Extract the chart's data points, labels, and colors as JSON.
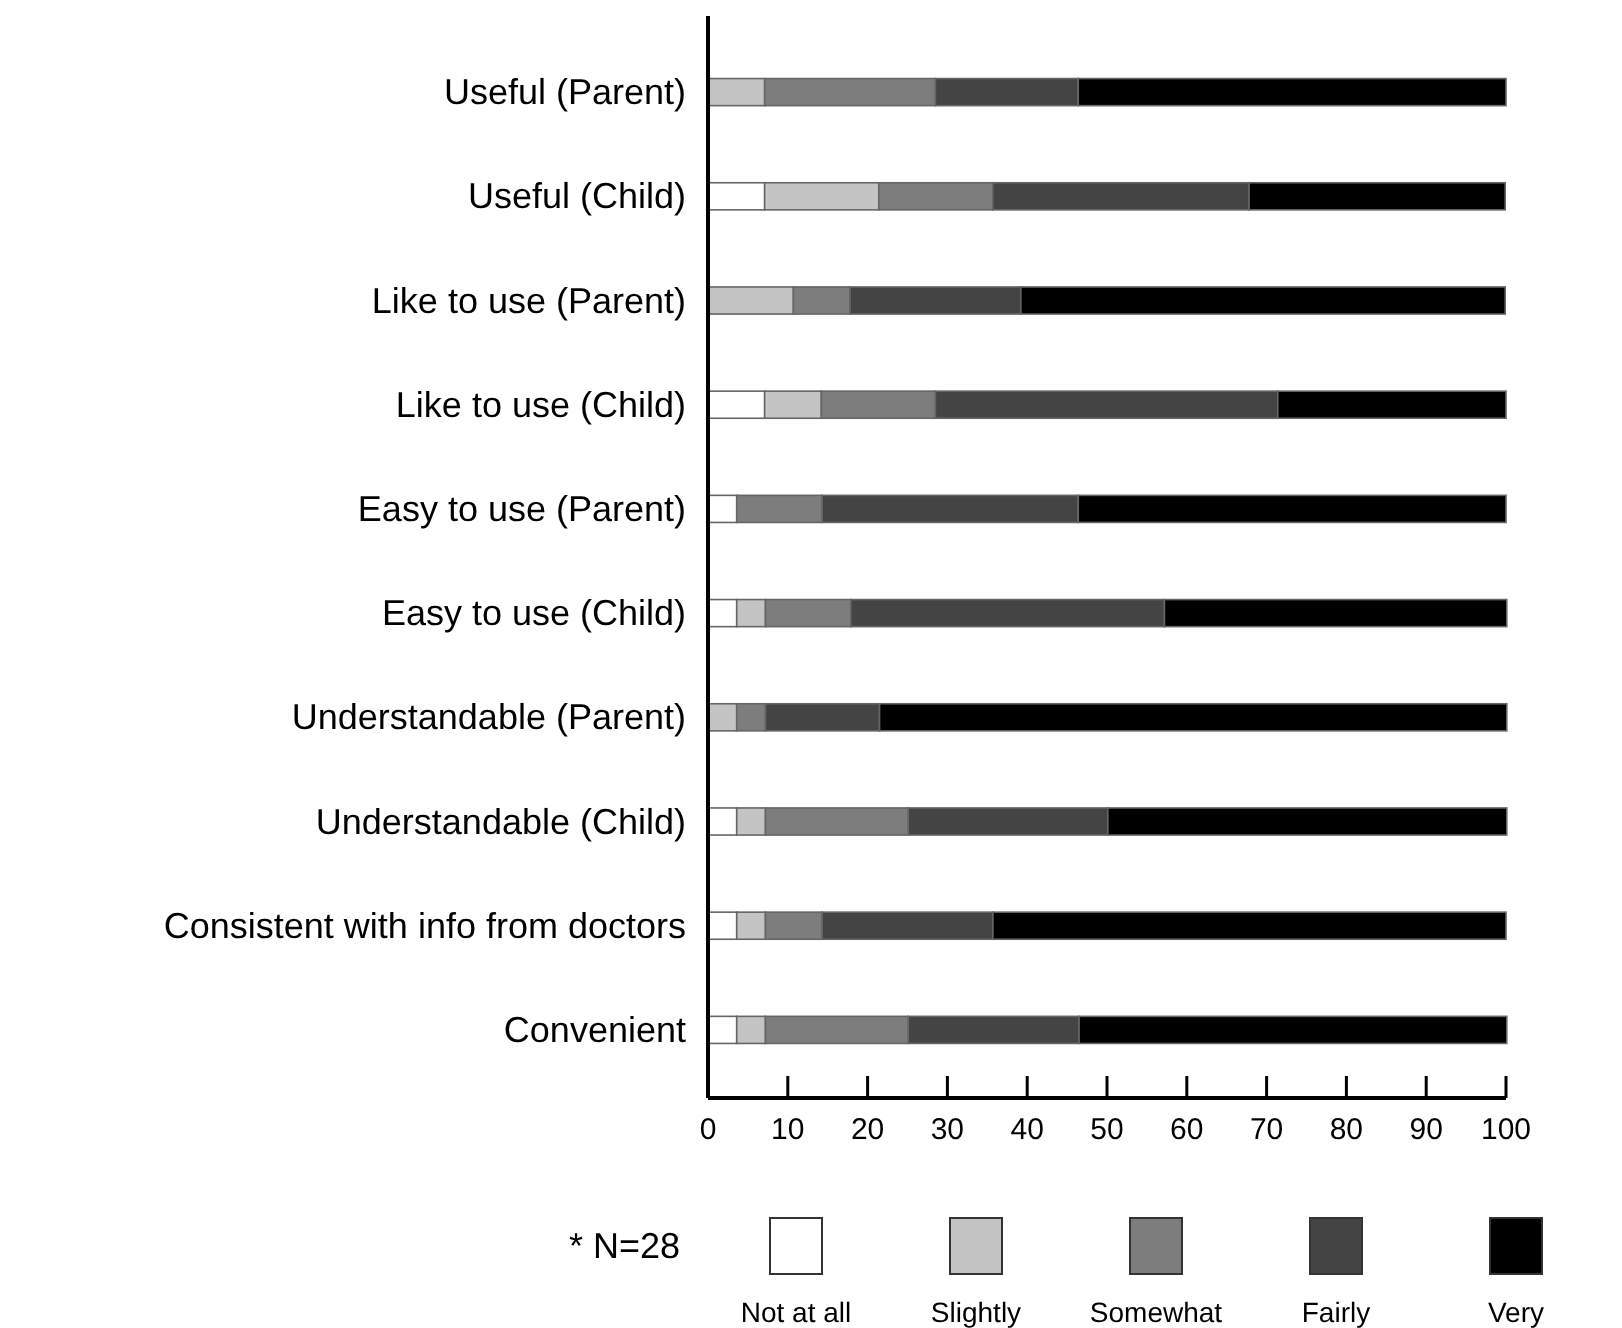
{
  "chart_data": {
    "type": "bar",
    "orientation": "horizontal",
    "stacked": true,
    "categories": [
      "Useful (Parent)",
      "Useful (Child)",
      "Like to use (Parent)",
      "Like to use (Child)",
      "Easy to use (Parent)",
      "Easy to use (Child)",
      "Understandable (Parent)",
      "Understandable (Child)",
      "Consistent with info from doctors",
      "Convenient"
    ],
    "series": [
      {
        "name": "Not at all",
        "color": "#ffffff",
        "values": [
          0,
          7.1,
          0,
          7.1,
          3.6,
          3.6,
          0,
          3.6,
          3.6,
          3.6
        ]
      },
      {
        "name": "Slightly",
        "color": "#c4c4c4",
        "values": [
          7.1,
          14.3,
          10.7,
          7.1,
          0,
          3.6,
          3.6,
          3.6,
          3.6,
          3.6
        ]
      },
      {
        "name": "Somewhat",
        "color": "#7d7d7d",
        "values": [
          21.4,
          14.3,
          7.1,
          14.3,
          10.7,
          10.7,
          3.6,
          17.9,
          7.1,
          17.9
        ]
      },
      {
        "name": "Fairly",
        "color": "#444444",
        "values": [
          17.9,
          32.1,
          21.4,
          42.9,
          32.1,
          39.3,
          14.3,
          25,
          21.4,
          21.4
        ]
      },
      {
        "name": "Very",
        "color": "#000000",
        "values": [
          53.6,
          32.1,
          60.7,
          28.6,
          53.6,
          42.9,
          78.6,
          50,
          64.3,
          53.6
        ]
      }
    ],
    "xlim": [
      0,
      100
    ],
    "xticks": [
      0,
      10,
      20,
      30,
      40,
      50,
      60,
      70,
      80,
      90,
      100
    ],
    "legend": "bottom",
    "annotations": [
      "* N=28"
    ]
  }
}
